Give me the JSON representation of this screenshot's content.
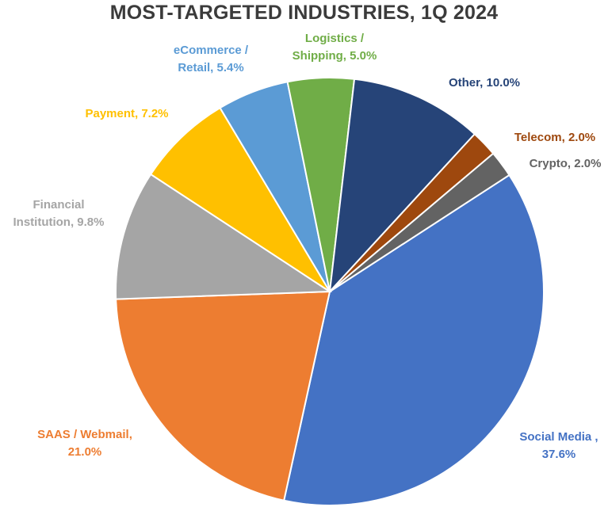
{
  "chart_data": {
    "type": "pie",
    "title": "MOST-TARGETED INDUSTRIES, 1Q 2024",
    "slices": [
      {
        "label": "Social Media ,",
        "value_label": "37.6%",
        "value": 37.6,
        "color": "#4472c4"
      },
      {
        "label": "SAAS / Webmail,",
        "value_label": "21.0%",
        "value": 21.0,
        "color": "#ed7d31"
      },
      {
        "label": "Financial",
        "label2": "Institution,",
        "value_label": "9.8%",
        "value": 9.8,
        "color": "#a5a5a5"
      },
      {
        "label": "Payment,",
        "value_label": "7.2%",
        "value": 7.2,
        "color": "#ffc000"
      },
      {
        "label": "eCommerce /",
        "label2": "Retail,",
        "value_label": "5.4%",
        "value": 5.4,
        "color": "#5b9bd5"
      },
      {
        "label": "Logistics /",
        "label2": "Shipping,",
        "value_label": "5.0%",
        "value": 5.0,
        "color": "#70ad47"
      },
      {
        "label": "Other,",
        "value_label": "10.0%",
        "value": 10.0,
        "color": "#264478"
      },
      {
        "label": "Telecom,",
        "value_label": "2.0%",
        "value": 2.0,
        "color": "#9e480e"
      },
      {
        "label": "Crypto,",
        "value_label": "2.0%",
        "value": 2.0,
        "color": "#636363"
      }
    ],
    "legend": "none"
  }
}
